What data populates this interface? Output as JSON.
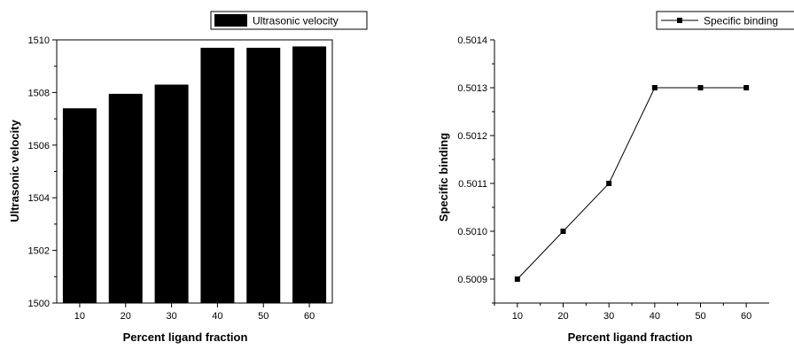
{
  "chart_data": [
    {
      "type": "bar",
      "categories": [
        "10",
        "20",
        "30",
        "40",
        "50",
        "60"
      ],
      "values": [
        1507.4,
        1507.95,
        1508.3,
        1509.7,
        1509.7,
        1509.75
      ],
      "series": [
        {
          "name": "Ultrasonic velocity",
          "values": [
            1507.4,
            1507.95,
            1508.3,
            1509.7,
            1509.7,
            1509.75
          ]
        }
      ],
      "xlabel": "Percent  ligand fraction",
      "ylabel": "Ultrasonic velocity",
      "ylim": [
        1500,
        1510
      ],
      "yticks": [
        "1500",
        "1502",
        "1504",
        "1506",
        "1508",
        "1510"
      ],
      "bar_color": "#000000",
      "legend": {
        "position": "top-right",
        "entries": [
          "Ultrasonic velocity"
        ]
      },
      "grid": false
    },
    {
      "type": "line",
      "x": [
        10,
        20,
        30,
        40,
        50,
        60
      ],
      "xticks": [
        "10",
        "20",
        "30",
        "40",
        "50",
        "60"
      ],
      "series": [
        {
          "name": "Specific binding",
          "values": [
            0.5009,
            0.501,
            0.5011,
            0.5013,
            0.5013,
            0.5013
          ]
        }
      ],
      "xlabel": "Percent  ligand fraction",
      "ylabel": "Specific binding",
      "xlim": [
        5,
        65
      ],
      "ylim": [
        0.50085,
        0.5014
      ],
      "yticks": [
        "0.5009",
        "0.5010",
        "0.5011",
        "0.5012",
        "0.5013",
        "0.5014"
      ],
      "ytick_values": [
        0.5009,
        0.501,
        0.5011,
        0.5012,
        0.5013,
        0.5014
      ],
      "line_color": "#000000",
      "marker": "square",
      "legend": {
        "position": "top-right",
        "entries": [
          "Specific binding"
        ]
      },
      "grid": false
    }
  ]
}
